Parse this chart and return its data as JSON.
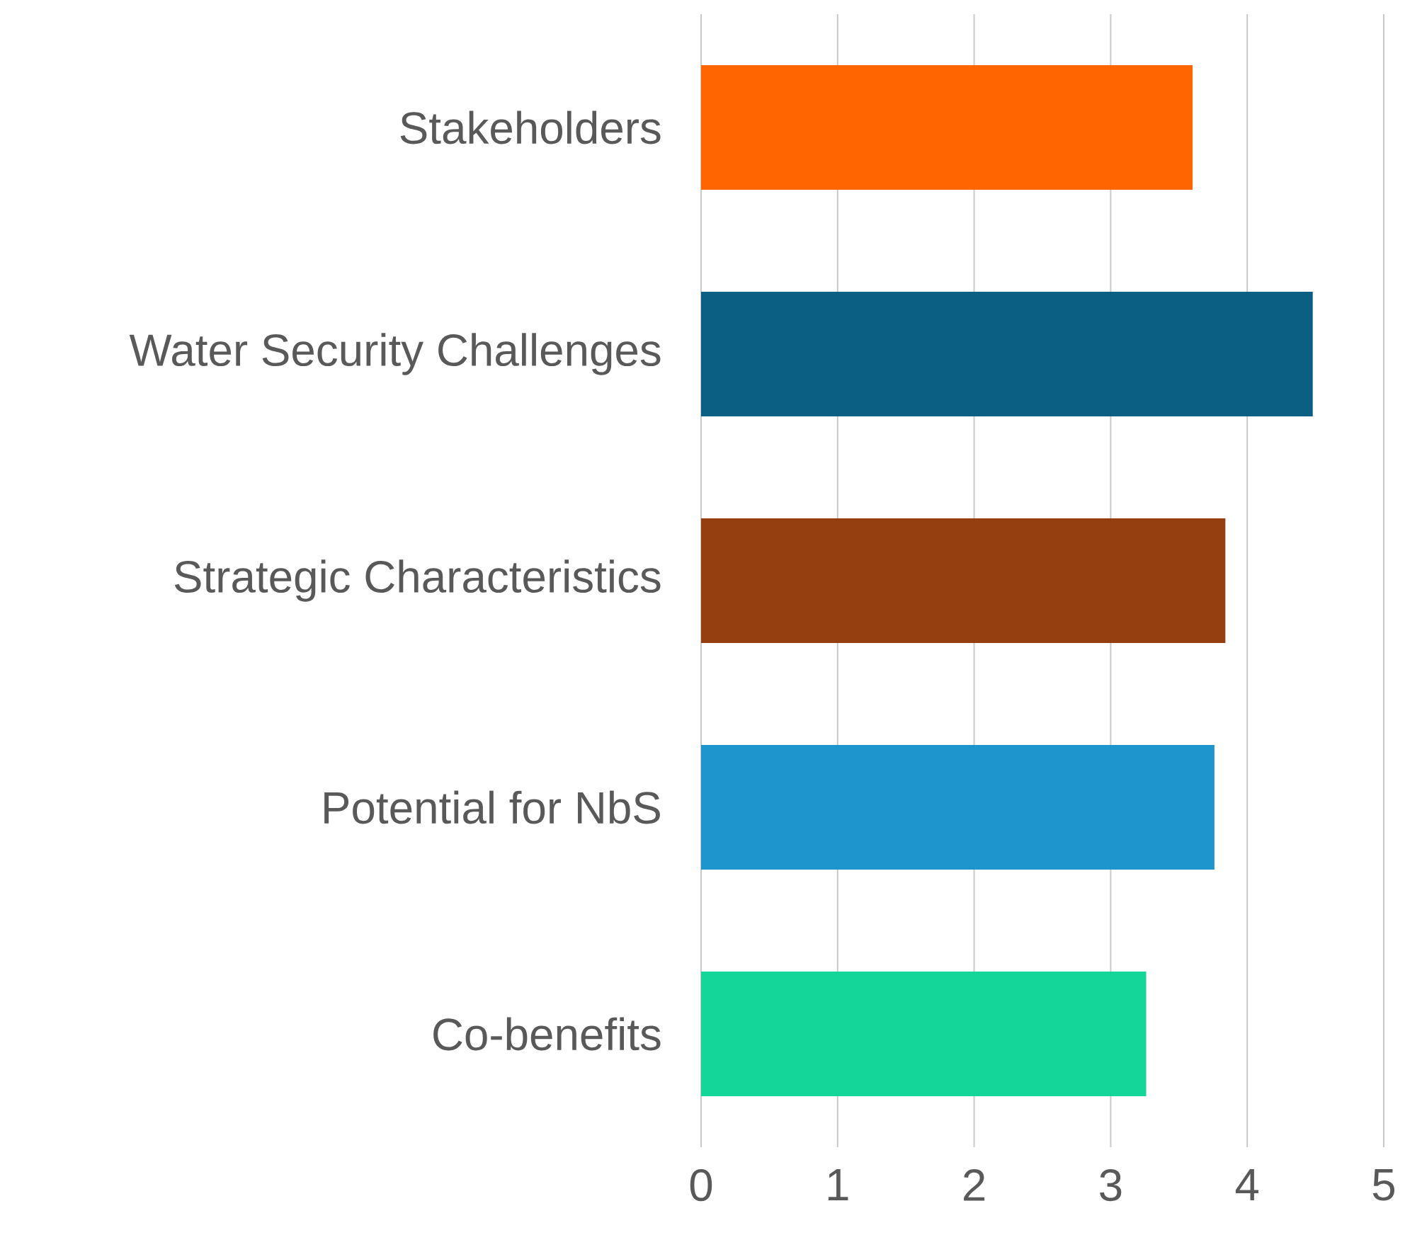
{
  "chart_data": {
    "type": "bar",
    "orientation": "horizontal",
    "categories": [
      "Stakeholders",
      "Water Security Challenges",
      "Strategic Characteristics",
      "Potential for NbS",
      "Co-benefits"
    ],
    "values": [
      3.6,
      4.48,
      3.84,
      3.76,
      3.26
    ],
    "colors": [
      "#ff6600",
      "#0b5f82",
      "#953f10",
      "#1e96cd",
      "#14d699"
    ],
    "xlim": [
      0,
      5
    ],
    "xticks": [
      0,
      1,
      2,
      3,
      4,
      5
    ],
    "grid": "x"
  }
}
